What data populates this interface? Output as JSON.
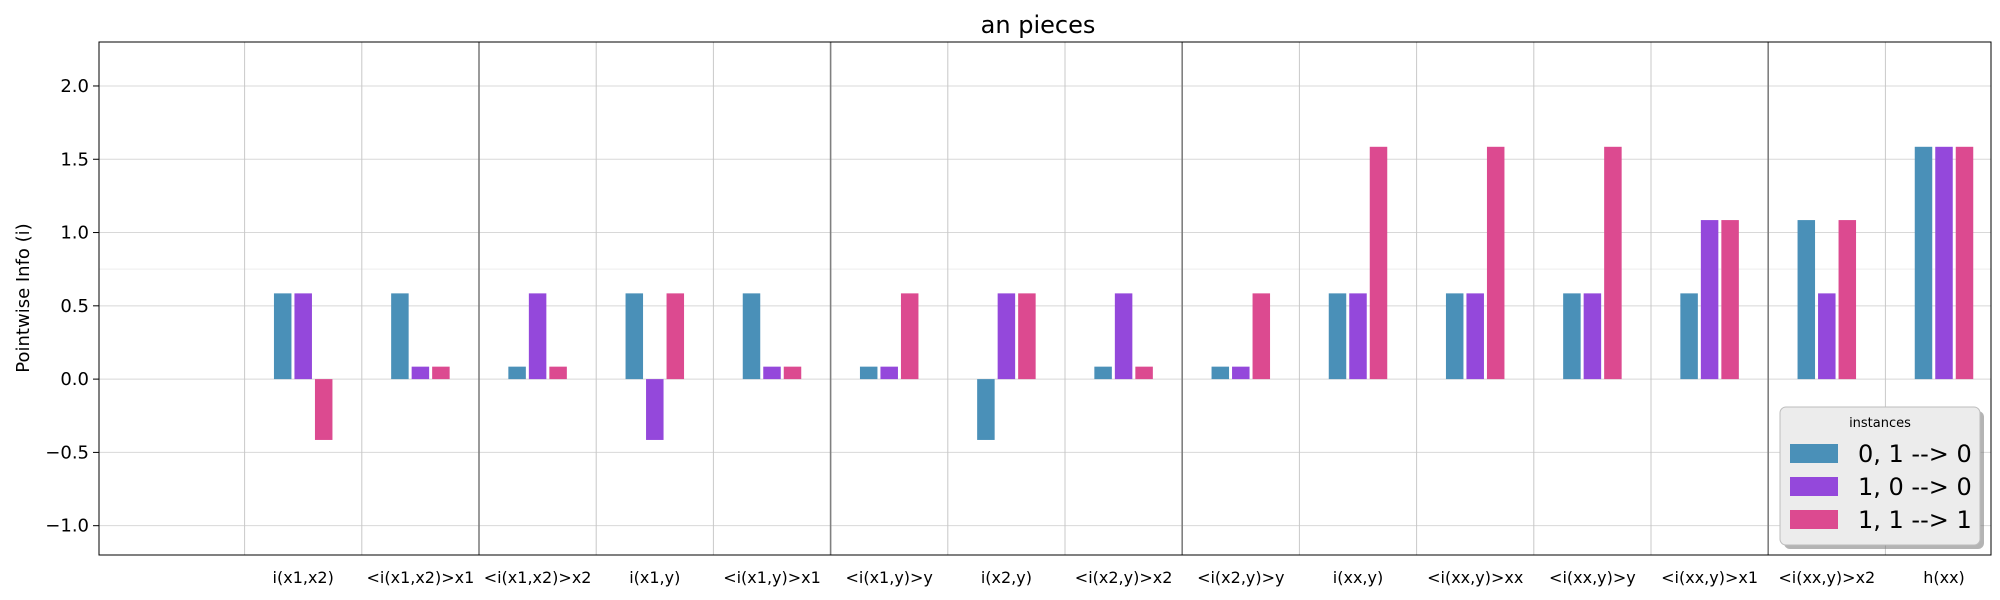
{
  "chart_data": {
    "type": "bar",
    "title": "an pieces",
    "ylabel": "Pointwise Info (i)",
    "xlabel": "",
    "ylim": [
      -1.2,
      2.3
    ],
    "yticks": [
      -1.0,
      -0.5,
      0.0,
      0.5,
      1.0,
      1.5,
      2.0
    ],
    "ytick_labels": [
      "−1.0",
      "−0.5",
      "0.0",
      "0.5",
      "1.0",
      "1.5",
      "2.0"
    ],
    "categories": [
      "i(x1,x2)",
      "<i(x1,x2)>x1",
      "<i(x1,x2)>x2",
      "i(x1,y)",
      "<i(x1,y)>x1",
      "<i(x1,y)>y",
      "i(x2,y)",
      "<i(x2,y)>x2",
      "<i(x2,y)>y",
      "i(xx,y)",
      "<i(xx,y)>xx",
      "<i(xx,y)>y",
      "<i(xx,y)>x1",
      "<i(xx,y)>x2",
      "h(xx)"
    ],
    "group_separators_after": [
      2,
      5,
      8,
      13
    ],
    "grid": true,
    "legend": {
      "title": "instances",
      "placement": "lower-right"
    },
    "series": [
      {
        "name": "0, 1 --> 0",
        "color": "#4a90b8",
        "values": [
          0.585,
          0.585,
          0.085,
          0.585,
          0.585,
          0.085,
          -0.415,
          0.085,
          0.085,
          0.585,
          0.585,
          0.585,
          0.585,
          1.085,
          1.585
        ]
      },
      {
        "name": "1, 0 --> 0",
        "color": "#9448db",
        "values": [
          0.585,
          0.085,
          0.585,
          -0.415,
          0.085,
          0.085,
          0.585,
          0.585,
          0.085,
          0.585,
          0.585,
          0.585,
          1.085,
          0.585,
          1.585
        ]
      },
      {
        "name": "1, 1 --> 1",
        "color": "#dc4a90",
        "values": [
          -0.415,
          0.085,
          0.085,
          0.585,
          0.085,
          0.585,
          0.585,
          0.085,
          0.585,
          1.585,
          1.585,
          1.585,
          1.085,
          1.085,
          1.585
        ]
      }
    ]
  }
}
